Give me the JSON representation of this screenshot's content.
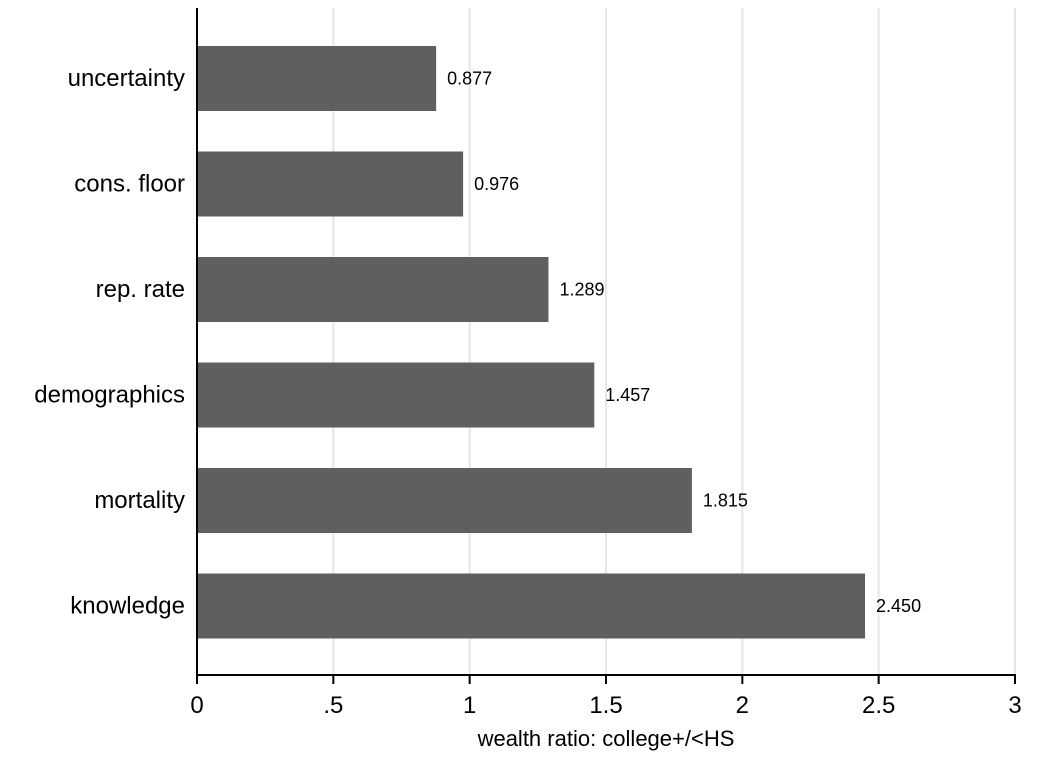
{
  "chart_data": {
    "type": "bar",
    "orientation": "horizontal",
    "categories": [
      "uncertainty",
      "cons. floor",
      "rep. rate",
      "demographics",
      "mortality",
      "knowledge"
    ],
    "values": [
      0.877,
      0.976,
      1.289,
      1.457,
      1.815,
      2.45
    ],
    "value_labels": [
      "0.877",
      "0.976",
      "1.289",
      "1.457",
      "1.815",
      "2.450"
    ],
    "title": "",
    "xlabel": "wealth ratio: college+/<HS",
    "ylabel": "",
    "xlim": [
      0,
      3
    ],
    "xticks": [
      0,
      0.5,
      1,
      1.5,
      2,
      2.5,
      3
    ],
    "xtick_labels": [
      "0",
      ".5",
      "1",
      "1.5",
      "2",
      "2.5",
      "3"
    ],
    "grid": true,
    "bar_color": "#5f5f5f",
    "grid_color": "#e6e6e6",
    "axis_color": "#000000"
  }
}
